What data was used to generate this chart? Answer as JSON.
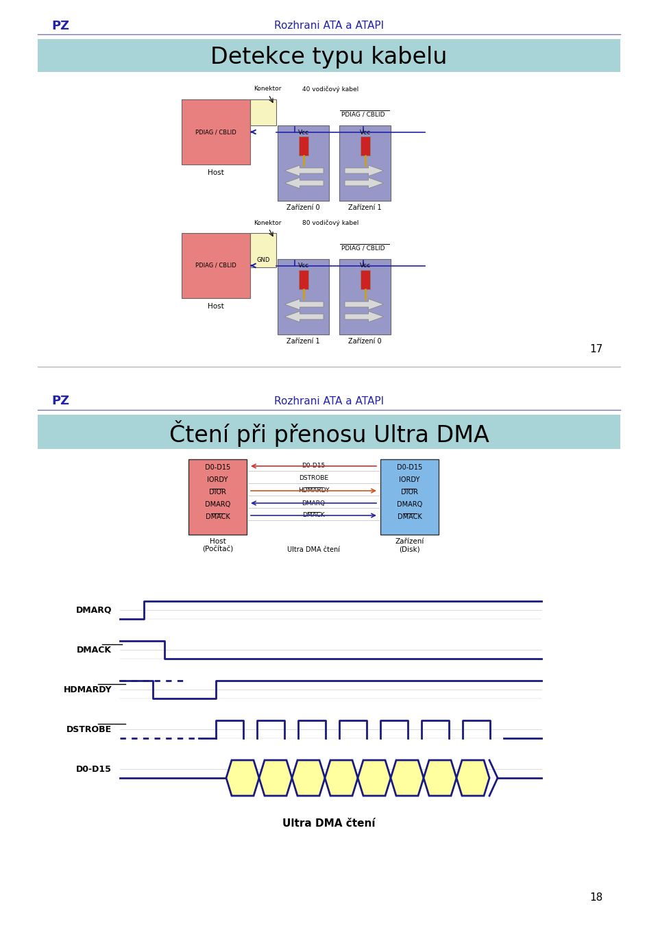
{
  "bg_color": "#ffffff",
  "page1": {
    "pz_label": "PZ",
    "header_text": "Rozhrani ATA a ATAPI",
    "title": "Detekce typu kabelu",
    "title_bg": "#a8d4d8",
    "page_num": "17"
  },
  "page2": {
    "pz_label": "PZ",
    "header_text": "Rozhrani ATA a ATAPI",
    "title": "Čtení při přenosu Ultra DMA",
    "title_bg": "#a8d4d8",
    "page_num": "18",
    "host_signals": [
      "D0-D15",
      "IORDY",
      "DIOR",
      "DMARQ",
      "DMACK"
    ],
    "bus_signals": [
      "D0-D15",
      "DSTROBE",
      "HDMARDY",
      "DMARQ",
      "DMACK"
    ],
    "device_signals": [
      "D0-D15",
      "IORDY",
      "DIOR",
      "DMARQ",
      "DMACK"
    ],
    "overline_host": [
      2,
      4
    ],
    "overline_bus": [
      2,
      4
    ],
    "overline_device": [
      2,
      4
    ],
    "signals": [
      "DMARQ",
      "DMACK",
      "HDMARDY",
      "DSTROBE",
      "D0-D15"
    ],
    "overline_wave": [
      1,
      2,
      3
    ],
    "waveform_title": "Ultra DMA čtení"
  },
  "colors": {
    "pz_color": "#2222aa",
    "header_color": "#2222aa",
    "title_bg": "#a8d4d8",
    "host_box1": "#e88080",
    "device_box1": "#9898c8",
    "connector_box": "#f8f4c0",
    "host_box2": "#e88080",
    "device_box2": "#80b8e8",
    "wave_color": "#1a1a80",
    "wave_fill": "#ffffa0",
    "line_color": "#2222aa",
    "arrow_pink": "#cc3333",
    "arrow_blue": "#2222aa",
    "gnd_box": "#f8f4c0"
  }
}
